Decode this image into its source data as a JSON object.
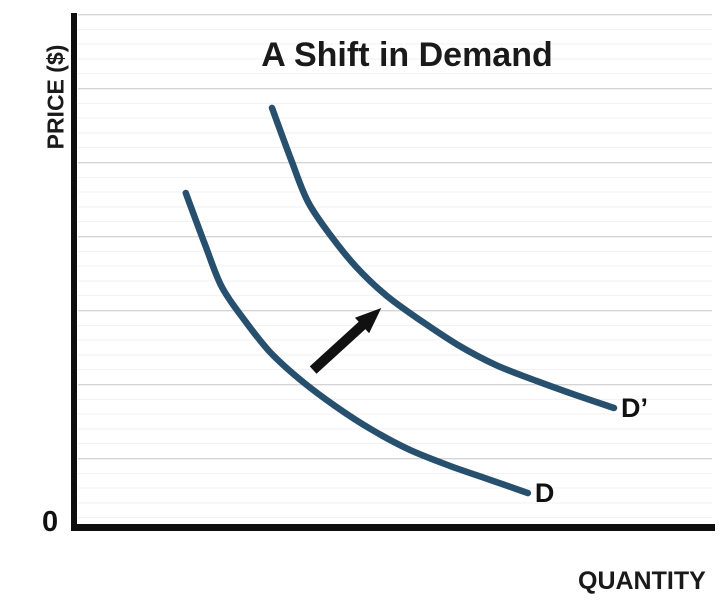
{
  "chart_data": {
    "type": "line",
    "title": "A Shift in Demand",
    "xlabel": "QUANTITY",
    "ylabel": "PRICE ($)",
    "origin_label": "0",
    "xlim": [
      0,
      100
    ],
    "ylim": [
      0,
      100
    ],
    "grid": "horizontal only; faint minor lines every 2.9 units, darker major lines every 14.4 units",
    "legend": "none",
    "axis_color": "#0e0e0e",
    "text_color": "#1a1a1a",
    "series": [
      {
        "name": "demand",
        "label": "D",
        "color": "#27506e",
        "points": [
          [
            17.7,
            65.1
          ],
          [
            20.7,
            55.0
          ],
          [
            23.3,
            46.8
          ],
          [
            26.9,
            40.2
          ],
          [
            30.8,
            34.1
          ],
          [
            35.5,
            28.7
          ],
          [
            40.9,
            23.6
          ],
          [
            46.7,
            18.9
          ],
          [
            52.6,
            15.0
          ],
          [
            58.8,
            11.9
          ],
          [
            65.0,
            9.2
          ],
          [
            70.9,
            6.6
          ]
        ]
      },
      {
        "name": "demand-shifted",
        "label": "D’",
        "color": "#27506e",
        "points": [
          [
            31.1,
            81.7
          ],
          [
            34.1,
            71.5
          ],
          [
            36.7,
            63.4
          ],
          [
            40.3,
            56.7
          ],
          [
            44.2,
            50.7
          ],
          [
            48.8,
            45.2
          ],
          [
            54.3,
            40.2
          ],
          [
            60.0,
            35.5
          ],
          [
            65.9,
            31.6
          ],
          [
            72.2,
            28.5
          ],
          [
            78.4,
            25.7
          ],
          [
            84.3,
            23.2
          ]
        ]
      }
    ],
    "annotations": [
      {
        "type": "arrow",
        "meaning": "rightward shift of demand from D to D’",
        "color": "#111111",
        "from": [
          37.5,
          30.6
        ],
        "to": [
          48.1,
          42.7
        ]
      }
    ]
  }
}
